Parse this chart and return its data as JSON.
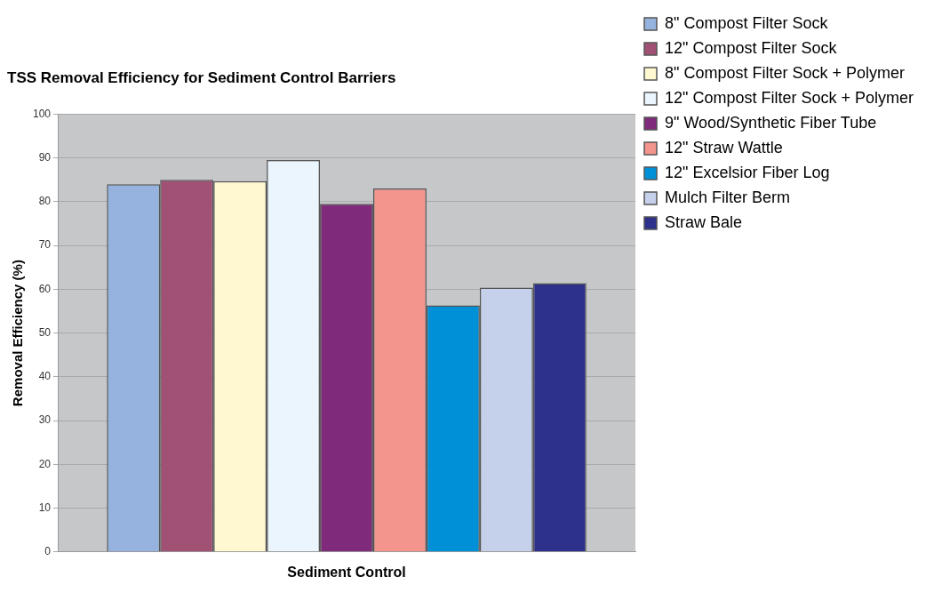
{
  "chart_data": {
    "type": "bar",
    "title": "TSS Removal Efficiency for Sediment Control Barriers",
    "ylabel": "Removal Efficiency (%)",
    "categories": [
      "Sediment Control"
    ],
    "series": [
      {
        "name": "8\" Compost Filter Sock",
        "color": "#95b3de",
        "values": [
          84
        ]
      },
      {
        "name": "12\" Compost Filter Sock",
        "color": "#a05174",
        "values": [
          85
        ]
      },
      {
        "name": "8\" Compost Filter Sock + Polymer",
        "color": "#fff8d0",
        "values": [
          84.7
        ]
      },
      {
        "name": "12\" Compost Filter Sock + Polymer",
        "color": "#eaf5fd",
        "values": [
          89.5
        ]
      },
      {
        "name": "9\" Wood/Synthetic Fiber Tube",
        "color": "#7f2a7a",
        "values": [
          79.5
        ]
      },
      {
        "name": "12\" Straw Wattle",
        "color": "#f4958d",
        "values": [
          83
        ]
      },
      {
        "name": "12\" Excelsior Fiber Log",
        "color": "#0090d8",
        "values": [
          56.3
        ]
      },
      {
        "name": "Mulch Filter Berm",
        "color": "#c5d0ea",
        "values": [
          60.4
        ]
      },
      {
        "name": "Straw Bale",
        "color": "#2e318c",
        "values": [
          61.4
        ]
      }
    ],
    "ylim": [
      0,
      100
    ],
    "yticks": [
      0,
      10,
      20,
      30,
      40,
      50,
      60,
      70,
      80,
      90,
      100
    ],
    "grid": "y",
    "legend": "top right"
  }
}
